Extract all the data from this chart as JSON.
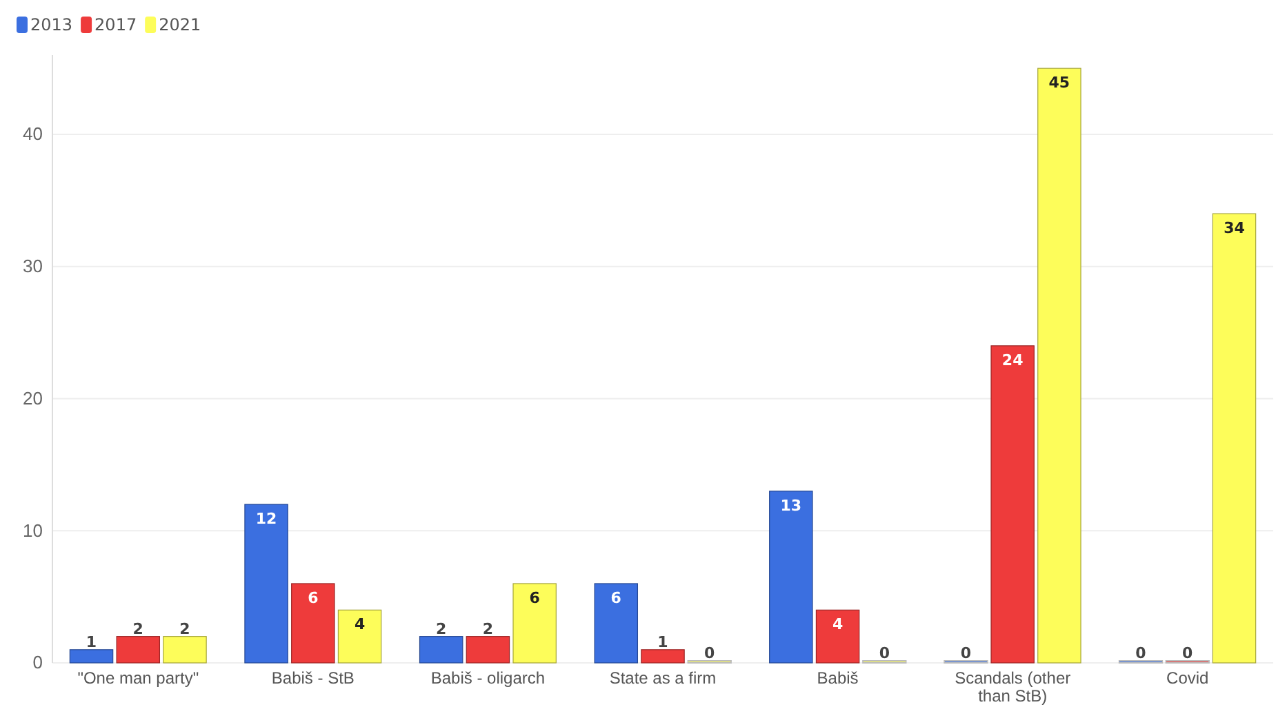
{
  "chart_data": {
    "type": "bar",
    "categories": [
      "\"One man party\"",
      "Babiš - StB",
      "Babiš - oligarch",
      "State as a firm",
      "Babiš",
      "Scandals (other than StB)",
      "Covid"
    ],
    "series": [
      {
        "name": "2013",
        "color": "#3b6fe0",
        "values": [
          1,
          12,
          2,
          6,
          13,
          0,
          0
        ]
      },
      {
        "name": "2017",
        "color": "#ee3b3b",
        "values": [
          2,
          6,
          2,
          1,
          4,
          24,
          0
        ]
      },
      {
        "name": "2021",
        "color": "#fdfd5a",
        "values": [
          2,
          4,
          6,
          0,
          0,
          45,
          34
        ]
      }
    ],
    "ylim": [
      0,
      46
    ],
    "yticks": [
      0,
      10,
      20,
      30,
      40
    ],
    "grid": "y",
    "legend": "top left",
    "data_labels": true
  }
}
